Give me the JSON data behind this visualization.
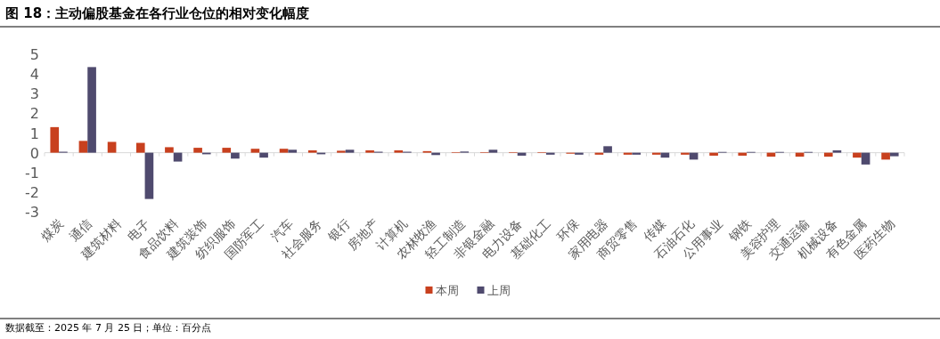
{
  "chart_data": {
    "type": "bar",
    "title": "图 18：主动偏股基金在各行业仓位的相对变化幅度",
    "annotations": [
      "数据截至：2025 年 7 月 25 日；单位：百分点"
    ],
    "categories": [
      "煤炭",
      "通信",
      "建筑材料",
      "电子",
      "食品饮料",
      "建筑装饰",
      "纺织服饰",
      "国防军工",
      "汽车",
      "社会服务",
      "银行",
      "房地产",
      "计算机",
      "农林牧渔",
      "轻工制造",
      "非银金融",
      "电力设备",
      "基础化工",
      "环保",
      "家用电器",
      "商贸零售",
      "传媒",
      "石油石化",
      "公用事业",
      "钢铁",
      "美容护理",
      "交通运输",
      "机械设备",
      "有色金属",
      "医药生物"
    ],
    "series": [
      {
        "name": "本周",
        "color": "#c8401e",
        "values": [
          1.3,
          0.6,
          0.55,
          0.5,
          0.28,
          0.25,
          0.25,
          0.2,
          0.2,
          0.12,
          0.1,
          0.12,
          0.12,
          0.08,
          0.03,
          0.03,
          0.03,
          0.03,
          -0.05,
          -0.1,
          -0.1,
          -0.1,
          -0.1,
          -0.15,
          -0.15,
          -0.2,
          -0.2,
          -0.2,
          -0.25,
          -0.35
        ]
      },
      {
        "name": "上周",
        "color": "#4f4a6e",
        "values": [
          0.05,
          4.35,
          0,
          -2.35,
          -0.45,
          -0.08,
          -0.3,
          -0.25,
          0.15,
          -0.08,
          0.15,
          0.05,
          0.05,
          -0.12,
          0.06,
          0.15,
          -0.15,
          -0.1,
          -0.1,
          0.33,
          -0.1,
          -0.25,
          -0.35,
          0.04,
          0.04,
          0.04,
          0.04,
          0.12,
          -0.6,
          -0.18
        ]
      }
    ],
    "ylim": [
      -3,
      5
    ],
    "yticks": [
      -3,
      -2,
      -1,
      0,
      1,
      2,
      3,
      4,
      5
    ],
    "legend": "bottom"
  }
}
